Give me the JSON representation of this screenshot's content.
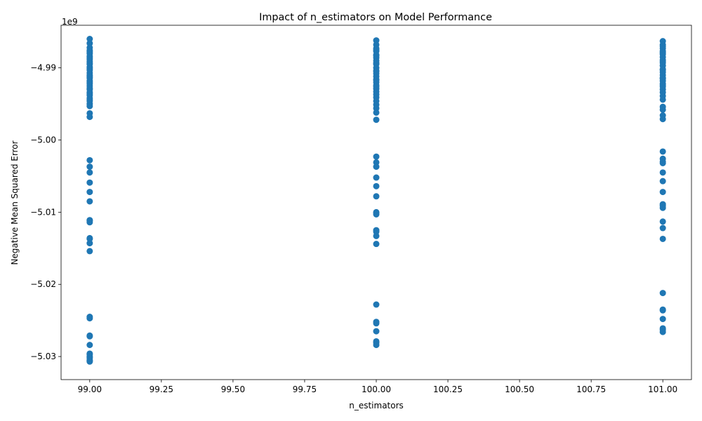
{
  "chart_data": {
    "type": "scatter",
    "title": "Impact of n_estimators on Model Performance",
    "xlabel": "n_estimators",
    "ylabel": "Negative Mean Squared Error",
    "y_offset_label": "1e9",
    "xlim": [
      98.9,
      101.1
    ],
    "ylim": [
      -5.0332,
      -4.9841
    ],
    "x_ticks": [
      99.0,
      99.25,
      99.5,
      99.75,
      100.0,
      100.25,
      100.5,
      100.75,
      101.0
    ],
    "x_tick_labels": [
      "99.00",
      "99.25",
      "99.50",
      "99.75",
      "100.00",
      "100.25",
      "100.50",
      "100.75",
      "101.00"
    ],
    "y_ticks": [
      -4.99,
      -5.0,
      -5.01,
      -5.02,
      -5.03
    ],
    "y_tick_labels": [
      "−4.99",
      "−5.00",
      "−5.01",
      "−5.02",
      "−5.03"
    ],
    "grid": false,
    "marker_color": "#1f77b4",
    "series": [
      {
        "x": [
          99,
          99,
          99,
          99,
          99,
          99,
          99,
          99,
          99,
          99,
          99,
          99,
          99,
          99,
          99,
          99,
          99,
          99,
          99,
          99,
          99,
          99,
          99,
          99,
          99,
          99,
          99,
          99,
          99,
          99,
          99,
          99,
          99,
          99,
          99,
          99,
          99,
          99,
          99,
          99,
          99,
          99,
          99,
          99,
          99,
          99,
          99,
          99,
          99,
          99,
          99,
          99,
          99,
          99,
          99,
          99,
          99,
          99,
          99,
          99,
          100,
          100,
          100,
          100,
          100,
          100,
          100,
          100,
          100,
          100,
          100,
          100,
          100,
          100,
          100,
          100,
          100,
          100,
          100,
          100,
          100,
          100,
          100,
          100,
          100,
          100,
          100,
          100,
          100,
          100,
          100,
          100,
          100,
          100,
          100,
          100,
          100,
          100,
          100,
          100,
          100,
          100,
          100,
          100,
          100,
          100,
          100,
          100,
          100,
          100,
          101,
          101,
          101,
          101,
          101,
          101,
          101,
          101,
          101,
          101,
          101,
          101,
          101,
          101,
          101,
          101,
          101,
          101,
          101,
          101,
          101,
          101,
          101,
          101,
          101,
          101,
          101,
          101,
          101,
          101,
          101,
          101,
          101,
          101,
          101,
          101,
          101,
          101,
          101,
          101,
          101,
          101,
          101,
          101,
          101,
          101,
          101,
          101,
          101,
          101
        ],
        "y": [
          -4.986,
          -4.9866,
          -4.9872,
          -4.9876,
          -4.988,
          -4.9884,
          -4.9888,
          -4.9891,
          -4.9895,
          -4.9899,
          -4.9903,
          -4.9907,
          -4.991,
          -4.9914,
          -4.9918,
          -4.9922,
          -4.9925,
          -4.993,
          -4.9934,
          -4.9938,
          -4.9942,
          -4.9946,
          -4.995,
          -4.9953,
          -4.9963,
          -4.9968,
          -5.0028,
          -5.0037,
          -5.0045,
          -5.0059,
          -5.0072,
          -5.0085,
          -5.0111,
          -5.0114,
          -5.0136,
          -5.0143,
          -5.0154,
          -5.0245,
          -5.0271,
          -5.0284,
          -5.0296,
          -5.03,
          -5.0305,
          -5.0307,
          -4.9878,
          -4.9886,
          -4.9893,
          -4.9901,
          -4.9912,
          -4.992,
          -4.9928,
          -4.9936,
          -4.9944,
          -5.0112,
          -5.0137,
          -5.0247,
          -5.0272,
          -5.0297,
          -5.0302,
          -5.0306,
          -4.9862,
          -4.9868,
          -4.9873,
          -4.9877,
          -4.9882,
          -4.9886,
          -4.989,
          -4.9895,
          -4.99,
          -4.9904,
          -4.9908,
          -4.9912,
          -4.9916,
          -4.992,
          -4.9924,
          -4.9929,
          -4.9933,
          -4.9937,
          -4.9941,
          -4.9946,
          -4.9951,
          -4.9956,
          -4.9962,
          -4.9972,
          -5.0023,
          -5.0031,
          -5.0037,
          -5.0052,
          -5.0064,
          -5.0078,
          -5.01,
          -5.0103,
          -5.0125,
          -5.0133,
          -5.0144,
          -5.0228,
          -5.0252,
          -5.0265,
          -5.0279,
          -5.0284,
          -4.9875,
          -4.9883,
          -4.9893,
          -4.9905,
          -4.9917,
          -4.9926,
          -5.0101,
          -5.0127,
          -5.0254,
          -5.0281,
          -4.9863,
          -4.9868,
          -4.9873,
          -4.9877,
          -4.9881,
          -4.9885,
          -4.9889,
          -4.9893,
          -4.9897,
          -4.9902,
          -4.9906,
          -4.991,
          -4.9914,
          -4.9918,
          -4.9922,
          -4.9926,
          -4.993,
          -4.9934,
          -4.9939,
          -4.9944,
          -4.9954,
          -4.9958,
          -4.9966,
          -4.9971,
          -5.0016,
          -5.0026,
          -5.0032,
          -5.0045,
          -5.0057,
          -5.0072,
          -5.0089,
          -5.0094,
          -5.0113,
          -5.0122,
          -5.0137,
          -5.0212,
          -5.0235,
          -5.0248,
          -5.0261,
          -5.0266,
          -4.987,
          -4.9879,
          -4.9891,
          -4.9903,
          -4.9915,
          -4.9924,
          -5.003,
          -5.0091,
          -5.0236,
          -5.0263
        ]
      }
    ]
  }
}
